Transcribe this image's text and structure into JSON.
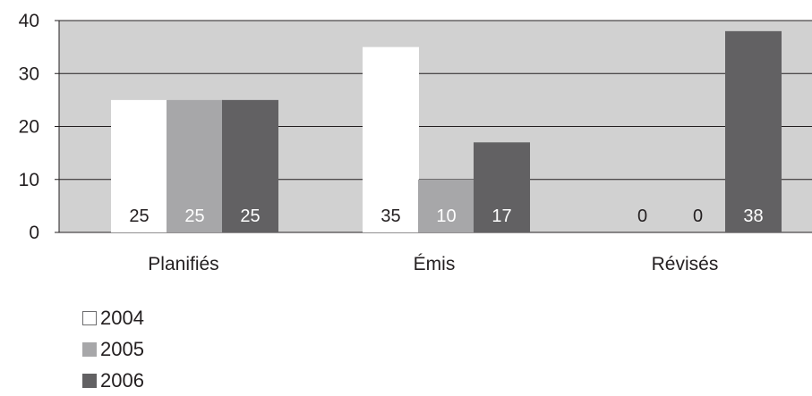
{
  "chart_data": {
    "type": "bar",
    "categories": [
      "Planifiés",
      "Émis",
      "Révisés"
    ],
    "series": [
      {
        "name": "2004",
        "values": [
          25,
          35,
          0
        ],
        "labels": [
          "25",
          "35",
          "0"
        ],
        "color": "#ffffff",
        "label_color": "#231f20"
      },
      {
        "name": "2005",
        "values": [
          25,
          10,
          0
        ],
        "labels": [
          "25",
          "10",
          "0"
        ],
        "color": "#a7a7a9",
        "label_color": "#ffffff"
      },
      {
        "name": "2006",
        "values": [
          25,
          17,
          38
        ],
        "labels": [
          "25",
          "17",
          "38"
        ],
        "color": "#626163",
        "label_color": "#ffffff"
      }
    ],
    "yticks": [
      "0",
      "10",
      "20",
      "30",
      "40"
    ],
    "ylim": [
      0,
      40
    ],
    "grid": true,
    "legend_position": "bottom-left",
    "colors": {
      "plot_background": "#d1d1d1",
      "grid_line": "#231f20",
      "text": "#231f20"
    }
  }
}
